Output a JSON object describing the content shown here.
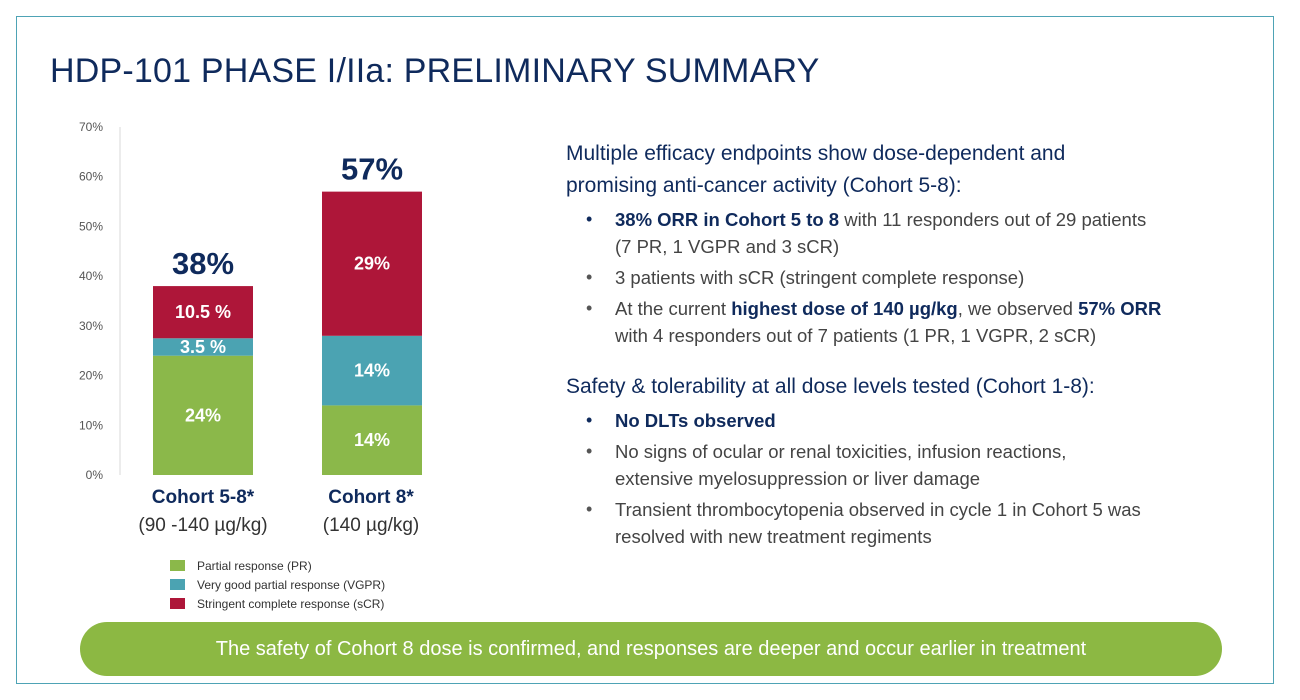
{
  "title": "HDP-101 PHASE I/IIa: PRELIMINARY SUMMARY",
  "chart_data": {
    "type": "bar",
    "stacked": true,
    "categories": [
      "Cohort 5-8*",
      "Cohort 8*"
    ],
    "category_subtitles": [
      "(90 -140 µg/kg)",
      "(140 µg/kg)"
    ],
    "ylim": [
      0,
      70
    ],
    "yticks": [
      0,
      10,
      20,
      30,
      40,
      50,
      60,
      70
    ],
    "ytick_labels": [
      "0%",
      "10%",
      "20%",
      "30%",
      "40%",
      "50%",
      "60%",
      "70%"
    ],
    "totals": [
      38,
      57
    ],
    "total_labels": [
      "38%",
      "57%"
    ],
    "series": [
      {
        "name": "Partial response (PR)",
        "color": "#8bb84a",
        "values": [
          24,
          14
        ],
        "labels": [
          "24%",
          "14%"
        ]
      },
      {
        "name": "Very good partial response (VGPR)",
        "color": "#4ba3b2",
        "values": [
          3.5,
          14
        ],
        "labels": [
          "3.5 %",
          "14%"
        ]
      },
      {
        "name": "Stringent complete response (sCR)",
        "color": "#ae1639",
        "values": [
          10.5,
          29
        ],
        "labels": [
          "10.5 %",
          "29%"
        ]
      }
    ]
  },
  "efficacy": {
    "heading_line1": "Multiple efficacy endpoints show dose-dependent and",
    "heading_line2": "promising anti-cancer activity (Cohort 5-8):",
    "b1_bold": "38% ORR in Cohort 5 to 8",
    "b1_text": " with 11 responders out of 29 patients",
    "b1_line2": "(7 PR, 1 VGPR and 3 sCR)",
    "b2": "3 patients with sCR (stringent complete response)",
    "b3_pre": "At the current ",
    "b3_bold1": "highest dose of 140 µg/kg",
    "b3_mid": ", we observed ",
    "b3_bold2": "57% ORR",
    "b3_line2": "with 4 responders out of 7 patients (1 PR, 1 VGPR, 2 sCR)"
  },
  "safety": {
    "heading": "Safety & tolerability at all dose levels tested (Cohort 1-8):",
    "b1_bold": "No DLTs observed",
    "b2_line1": "No signs of ocular or renal toxicities, infusion reactions,",
    "b2_line2": "extensive myelosuppression or liver damage",
    "b3_line1": "Transient thrombocytopenia observed in cycle 1 in Cohort 5 was",
    "b3_line2": "resolved with new treatment regiments"
  },
  "bullet_char": "•",
  "banner": "The safety of Cohort 8 dose is confirmed, and responses are deeper and occur earlier in treatment"
}
